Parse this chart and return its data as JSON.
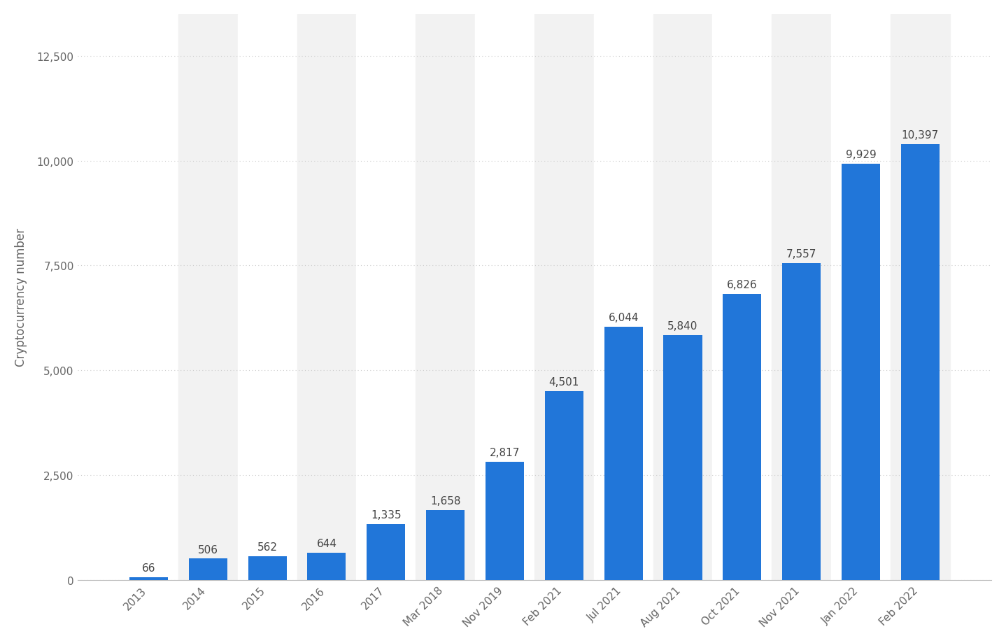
{
  "categories": [
    "2013",
    "2014",
    "2015",
    "2016",
    "2017",
    "Mar 2018",
    "Nov 2019",
    "Feb 2021",
    "Jul 2021",
    "Aug 2021",
    "Oct 2021",
    "Nov 2021",
    "Jan 2022",
    "Feb 2022"
  ],
  "values": [
    66,
    506,
    562,
    644,
    1335,
    1658,
    2817,
    4501,
    6044,
    5840,
    6826,
    7557,
    9929,
    10397
  ],
  "bar_color": "#2176d9",
  "ylabel": "Cryptocurrency number",
  "ylim": [
    0,
    13500
  ],
  "yticks": [
    0,
    2500,
    5000,
    7500,
    10000,
    12500
  ],
  "background_color": "#ffffff",
  "panel_color": "#ffffff",
  "col_shade_odd": "#f2f2f2",
  "col_shade_even": "#ffffff",
  "grid_color": "#cccccc",
  "label_color": "#666666",
  "value_label_color": "#444444",
  "axis_label_fontsize": 12,
  "tick_fontsize": 11,
  "value_fontsize": 11
}
